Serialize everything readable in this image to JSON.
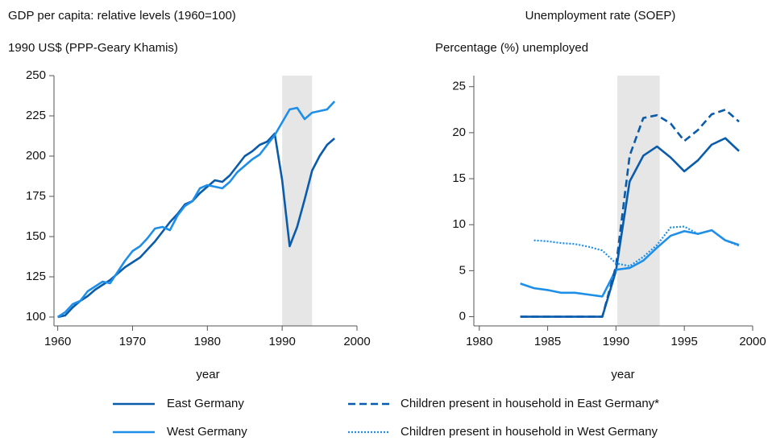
{
  "chart_data": [
    {
      "type": "line",
      "title": "GDP per capita: relative levels (1960=100)",
      "y_label": "1990 US$ (PPP-Geary Khamis)",
      "x_label": "year",
      "x": [
        1960,
        1961,
        1962,
        1963,
        1964,
        1965,
        1966,
        1967,
        1968,
        1969,
        1970,
        1971,
        1972,
        1973,
        1974,
        1975,
        1976,
        1977,
        1978,
        1979,
        1980,
        1981,
        1982,
        1983,
        1984,
        1985,
        1986,
        1987,
        1988,
        1989,
        1990,
        1991,
        1992,
        1993,
        1994,
        1995,
        1996,
        1997
      ],
      "series": [
        {
          "name": "East Germany",
          "color": "#0a5cab",
          "style": "solid",
          "values": [
            100,
            101,
            106,
            110,
            113,
            117,
            120,
            123,
            127,
            131,
            134,
            137,
            142,
            147,
            153,
            159,
            164,
            170,
            172,
            177,
            181,
            185,
            184,
            188,
            194,
            200,
            203,
            207,
            209,
            214,
            185,
            144,
            156,
            173,
            191,
            200,
            207,
            211
          ]
        },
        {
          "name": "West Germany",
          "color": "#1e8fe8",
          "style": "solid",
          "values": [
            100,
            103,
            108,
            110,
            116,
            119,
            122,
            121,
            128,
            135,
            141,
            144,
            149,
            155,
            156,
            154,
            163,
            169,
            172,
            180,
            182,
            181,
            180,
            184,
            190,
            194,
            198,
            201,
            207,
            213,
            221,
            229,
            230,
            223,
            227,
            228,
            229,
            234
          ]
        }
      ],
      "shaded_range": [
        1990,
        1994
      ],
      "xlim": [
        1959.5,
        2000
      ],
      "ylim": [
        94.5,
        250
      ],
      "xticks": [
        1960,
        1970,
        1980,
        1990,
        2000
      ],
      "yticks": [
        100,
        125,
        150,
        175,
        200,
        225,
        250
      ]
    },
    {
      "type": "line",
      "title": "Unemployment rate (SOEP)",
      "y_label": "Percentage (%) unemployed",
      "x_label": "year",
      "x": [
        1983,
        1984,
        1985,
        1986,
        1987,
        1988,
        1989,
        1990,
        1991,
        1992,
        1993,
        1994,
        1995,
        1996,
        1997,
        1998,
        1999
      ],
      "series": [
        {
          "name": "East Germany",
          "color": "#0a5cab",
          "style": "solid",
          "values": [
            0,
            0,
            0,
            0,
            0,
            0,
            0,
            5,
            14.7,
            17.5,
            18.5,
            17.3,
            15.8,
            17,
            18.7,
            19.4,
            18
          ]
        },
        {
          "name": "West Germany",
          "color": "#1e8fe8",
          "style": "solid",
          "values": [
            3.6,
            3.1,
            2.9,
            2.6,
            2.6,
            2.4,
            2.2,
            5.1,
            5.3,
            6.1,
            7.5,
            8.8,
            9.3,
            9,
            9.4,
            8.3,
            7.8
          ]
        },
        {
          "name": "Children present in household in East Germany*",
          "color": "#0a5cab",
          "style": "dashed",
          "values": [
            0,
            0,
            0,
            0,
            0,
            0,
            0,
            5.5,
            17.5,
            21.6,
            21.9,
            21,
            19.1,
            20.3,
            22,
            22.5,
            21.2
          ]
        },
        {
          "name": "Children present in household in West Germany",
          "color": "#1e8fe8",
          "style": "dotted",
          "values": [
            null,
            8.3,
            8.2,
            8,
            7.9,
            7.6,
            7.2,
            5.8,
            5.5,
            6.5,
            7.8,
            9.7,
            9.8,
            9,
            9.4,
            8.3,
            7.7
          ]
        }
      ],
      "shaded_range": [
        1990.1,
        1993.2
      ],
      "xlim": [
        1979.6,
        2000
      ],
      "ylim": [
        -1,
        26.2
      ],
      "xticks": [
        1980,
        1985,
        1990,
        1995,
        2000
      ],
      "yticks": [
        0,
        5,
        10,
        15,
        20,
        25
      ]
    }
  ]
}
